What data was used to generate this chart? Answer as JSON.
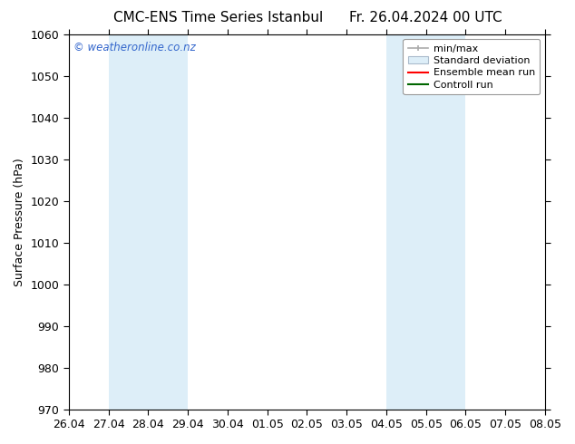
{
  "title_left": "CMC-ENS Time Series Istanbul",
  "title_right": "Fr. 26.04.2024 00 UTC",
  "ylabel": "Surface Pressure (hPa)",
  "ylim": [
    970,
    1060
  ],
  "yticks": [
    970,
    980,
    990,
    1000,
    1010,
    1020,
    1030,
    1040,
    1050,
    1060
  ],
  "xtick_labels": [
    "26.04",
    "27.04",
    "28.04",
    "29.04",
    "30.04",
    "01.05",
    "02.05",
    "03.05",
    "04.05",
    "05.05",
    "06.05",
    "07.05",
    "08.05"
  ],
  "xtick_positions": [
    0,
    1,
    2,
    3,
    4,
    5,
    6,
    7,
    8,
    9,
    10,
    11,
    12
  ],
  "xlim": [
    0,
    12
  ],
  "shaded_regions": [
    {
      "x_start": 1,
      "x_end": 3,
      "color": "#ddeef8"
    },
    {
      "x_start": 8,
      "x_end": 10,
      "color": "#ddeef8"
    }
  ],
  "watermark": "© weatheronline.co.nz",
  "watermark_color": "#3366cc",
  "background_color": "#ffffff",
  "title_fontsize": 11,
  "label_fontsize": 9,
  "tick_fontsize": 9,
  "legend_fontsize": 8,
  "spine_color": "#000000",
  "tick_color": "#000000",
  "grid_color": "#000000",
  "legend_minmax_color": "#aaaaaa",
  "legend_std_facecolor": "#ddeef8",
  "legend_std_edgecolor": "#aabbcc",
  "legend_ens_color": "#ff0000",
  "legend_ctrl_color": "#006600"
}
